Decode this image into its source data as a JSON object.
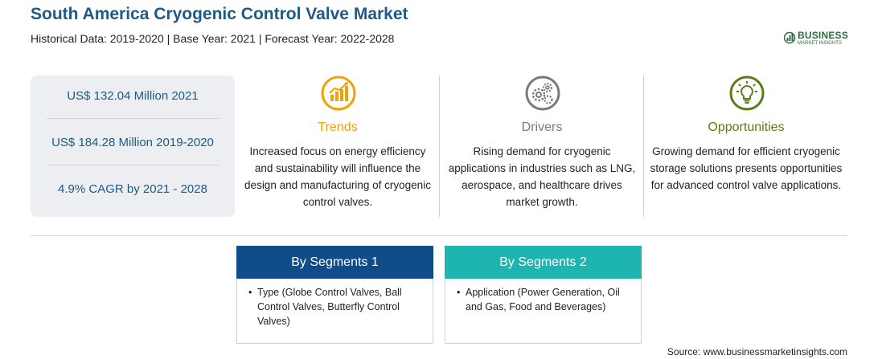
{
  "header": {
    "title": "South America Cryogenic Control Valve Market",
    "subtitle": "Historical Data: 2019-2020 | Base Year: 2021 | Forecast Year: 2022-2028"
  },
  "logo": {
    "brand": "BUSINESS",
    "tagline": "MARKET INSIGHTS"
  },
  "stats": [
    "US$ 132.04 Million 2021",
    "US$ 184.28 Million 2019-2020",
    "4.9% CAGR by 2021 - 2028"
  ],
  "columns": [
    {
      "title": "Trends",
      "icon": "chart-growth-icon",
      "color": "#f2a007",
      "text": "Increased focus on energy efficiency and sustainability will influence the design and manufacturing of cryogenic control valves."
    },
    {
      "title": "Drivers",
      "icon": "gears-icon",
      "color": "#7a7a7a",
      "text": "Rising demand for cryogenic applications in industries such as LNG, aerospace, and healthcare drives market growth."
    },
    {
      "title": "Opportunities",
      "icon": "lightbulb-icon",
      "color": "#5b7d17",
      "text": "Growing demand for efficient cryogenic storage solutions presents opportunities for advanced control valve applications."
    }
  ],
  "segments": [
    {
      "title": "By Segments 1",
      "color": "#0f4c8a",
      "bullet": "•",
      "text": "Type (Globe Control Valves, Ball Control Valves, Butterfly Control Valves)"
    },
    {
      "title": "By Segments 2",
      "color": "#1eb4b0",
      "bullet": "•",
      "text": "Application (Power Generation, Oil and Gas, Food and Beverages)"
    }
  ],
  "source": "Source: www.businessmarketinsights.com"
}
